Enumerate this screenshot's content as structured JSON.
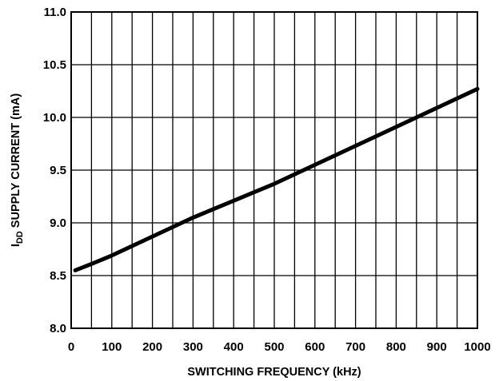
{
  "chart_data": {
    "type": "line",
    "title": "",
    "xlabel": "SWITCHING FREQUENCY (kHz)",
    "ylabel": {
      "prefix": "I",
      "subscript": "DD",
      "suffix": " SUPPLY CURRENT (mA)"
    },
    "xlim": [
      0,
      1000
    ],
    "ylim": [
      8.0,
      11.0
    ],
    "x_ticks": [
      0,
      100,
      200,
      300,
      400,
      500,
      600,
      700,
      800,
      900,
      1000
    ],
    "x_tick_labels": [
      "0",
      "100",
      "200",
      "300",
      "400",
      "500",
      "600",
      "700",
      "800",
      "900",
      "1000"
    ],
    "y_ticks": [
      8.0,
      8.5,
      9.0,
      9.5,
      10.0,
      10.5,
      11.0
    ],
    "y_tick_labels": [
      "8.0",
      "8.5",
      "9.0",
      "9.5",
      "10.0",
      "10.5",
      "11.0"
    ],
    "grid": true,
    "x_grid_step": 50,
    "legend": "none",
    "series": [
      {
        "color": "#000000",
        "x": [
          10,
          50,
          100,
          150,
          200,
          250,
          300,
          350,
          400,
          450,
          500,
          550,
          600,
          650,
          700,
          750,
          800,
          850,
          900,
          950,
          1000
        ],
        "y": [
          8.55,
          8.61,
          8.69,
          8.78,
          8.87,
          8.96,
          9.05,
          9.13,
          9.21,
          9.29,
          9.37,
          9.46,
          9.55,
          9.64,
          9.73,
          9.82,
          9.91,
          10.0,
          10.09,
          10.18,
          10.27
        ]
      }
    ]
  }
}
